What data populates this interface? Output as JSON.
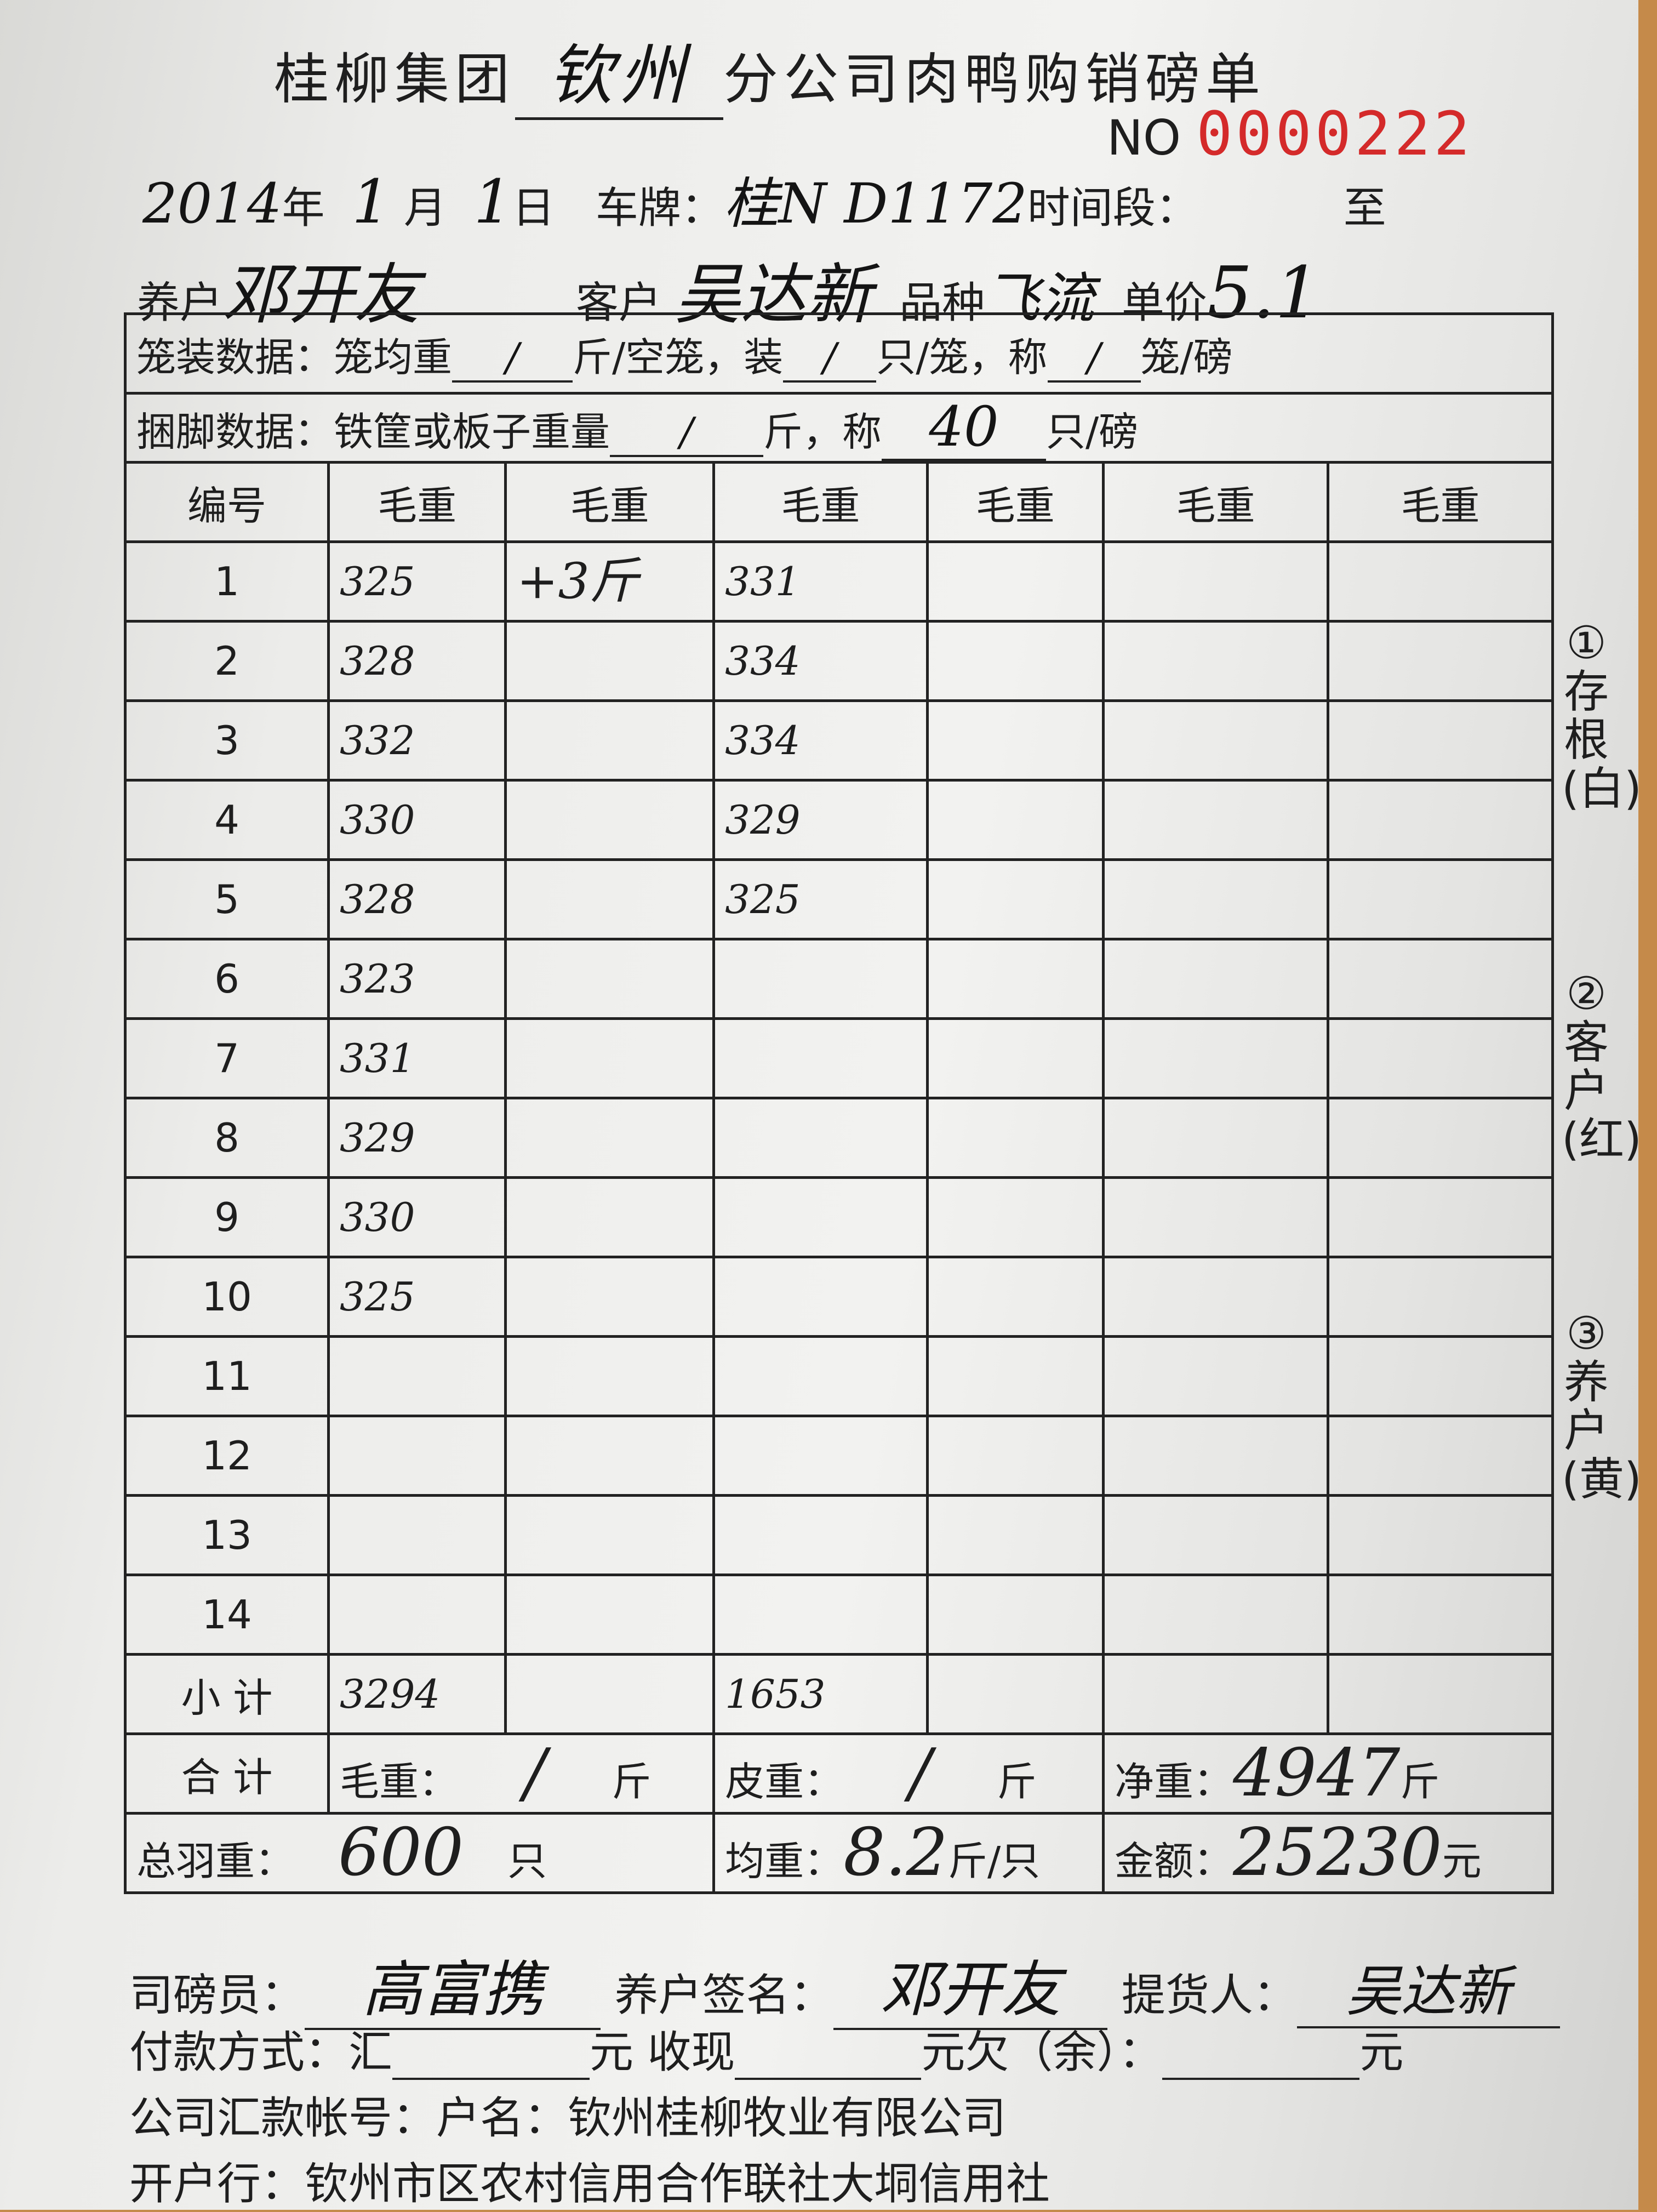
{
  "header": {
    "title_prefix": "桂柳集团",
    "branch": "钦州",
    "title_suffix": "分公司肉鸭购销磅单",
    "no_label": "NO",
    "serial": "0000222",
    "serial_color": "#d42a2a"
  },
  "meta": {
    "year": "2014",
    "year_label": "年",
    "month": "1",
    "month_label": "月",
    "day": "1",
    "day_label": "日",
    "plate_label": "车牌：",
    "plate": "桂N D1172",
    "period_label": "时间段：",
    "period_to": "至",
    "farmer_label": "养户",
    "farmer": "邓开友",
    "customer_label": "客户",
    "customer": "吴达新",
    "variety_label": "品种",
    "variety": "飞流",
    "price_label": "单价",
    "price": "5.1"
  },
  "cage": {
    "label": "笼装数据：笼均重",
    "avg": "/",
    "unit1": "斤/空笼，装",
    "per": "/",
    "unit2": "只/笼，称",
    "cages": "/",
    "unit3": "笼/磅"
  },
  "bundle": {
    "label": "捆脚数据：铁筐或板子重量",
    "weight": "/",
    "unit1": "斤，称",
    "count": "40",
    "unit2": "只/磅"
  },
  "table": {
    "headers": [
      "编号",
      "毛重",
      "毛重",
      "毛重",
      "毛重",
      "毛重",
      "毛重"
    ],
    "rows": [
      [
        "1",
        "325",
        "+3斤",
        "331",
        "",
        "",
        ""
      ],
      [
        "2",
        "328",
        "",
        "334",
        "",
        "",
        ""
      ],
      [
        "3",
        "332",
        "",
        "334",
        "",
        "",
        ""
      ],
      [
        "4",
        "330",
        "",
        "329",
        "",
        "",
        ""
      ],
      [
        "5",
        "328",
        "",
        "325",
        "",
        "",
        ""
      ],
      [
        "6",
        "323",
        "",
        "",
        "",
        "",
        ""
      ],
      [
        "7",
        "331",
        "",
        "",
        "",
        "",
        ""
      ],
      [
        "8",
        "329",
        "",
        "",
        "",
        "",
        ""
      ],
      [
        "9",
        "330",
        "",
        "",
        "",
        "",
        ""
      ],
      [
        "10",
        "325",
        "",
        "",
        "",
        "",
        ""
      ],
      [
        "11",
        "",
        "",
        "",
        "",
        "",
        ""
      ],
      [
        "12",
        "",
        "",
        "",
        "",
        "",
        ""
      ],
      [
        "13",
        "",
        "",
        "",
        "",
        "",
        ""
      ],
      [
        "14",
        "",
        "",
        "",
        "",
        "",
        ""
      ]
    ],
    "subtotal_label": "小 计",
    "subtotals": [
      "3294",
      "",
      "1653",
      "",
      "",
      ""
    ],
    "total_label": "合 计",
    "gross_label": "毛重：",
    "gross": "/",
    "tare_label": "皮重：",
    "tare": "/",
    "jin": "斤",
    "net_label": "净重：",
    "net": "4947",
    "count_label": "总羽重：",
    "count": "600",
    "count_unit": "只",
    "avg_label": "均重：",
    "avg": "8.2",
    "avg_unit": "斤/只",
    "amount_label": "金额：",
    "amount": "25230",
    "amount_unit": "元"
  },
  "side_labels": [
    "①存根(白)",
    "②客户(红)",
    "③养户(黄)"
  ],
  "footer": {
    "weigher_label": "司磅员：",
    "weigher": "高富携",
    "farmer_sign_label": "养户签名：",
    "farmer_sign": "邓开友",
    "pickup_label": "提货人：",
    "pickup": "吴达新",
    "payment_label": "付款方式：汇",
    "yuan": "元",
    "cash_label": "收现",
    "owe_label": "元欠（余）：",
    "yuan2": "元",
    "account": "公司汇款帐号：户名：钦州桂柳牧业有限公司",
    "bank": "开户行：钦州市区农村信用合作联社大垌信用社"
  }
}
